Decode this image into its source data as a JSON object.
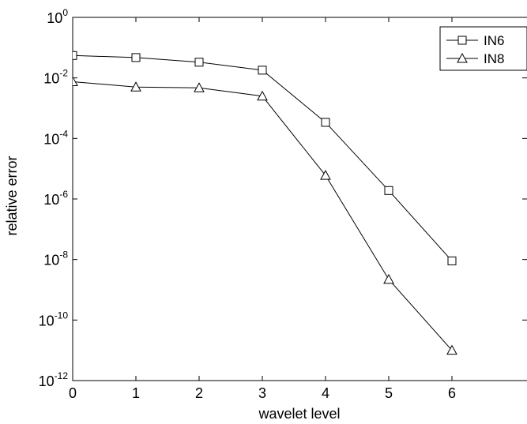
{
  "chart_data": {
    "type": "line",
    "x_scale": "linear",
    "y_scale": "log",
    "xlabel": "wavelet level",
    "ylabel": "relative error",
    "xlim": [
      0,
      6
    ],
    "ylim": [
      1e-12,
      1
    ],
    "x_ticks": [
      0,
      1,
      2,
      3,
      4,
      5,
      6
    ],
    "x_tick_labels": [
      "0",
      "1",
      "2",
      "3",
      "4",
      "5",
      "6"
    ],
    "y_ticks": [
      {
        "value": 1e-12,
        "base": "10",
        "exp": "-12"
      },
      {
        "value": 1e-10,
        "base": "10",
        "exp": "-10"
      },
      {
        "value": 1e-08,
        "base": "10",
        "exp": "-8"
      },
      {
        "value": 1e-06,
        "base": "10",
        "exp": "-6"
      },
      {
        "value": 0.0001,
        "base": "10",
        "exp": "-4"
      },
      {
        "value": 0.01,
        "base": "10",
        "exp": "-2"
      },
      {
        "value": 1,
        "base": "10",
        "exp": "0"
      }
    ],
    "x": [
      0,
      1,
      2,
      3,
      4,
      5,
      6
    ],
    "series": [
      {
        "name": "IN6",
        "marker": "square",
        "values": [
          0.055,
          0.047,
          0.033,
          0.018,
          0.00034,
          1.9e-06,
          9e-09
        ]
      },
      {
        "name": "IN8",
        "marker": "triangle",
        "values": [
          0.0075,
          0.005,
          0.0047,
          0.0025,
          6e-06,
          2.2e-09,
          1e-11
        ]
      }
    ],
    "legend_position": "top-right",
    "grid": false,
    "line_color": "#000000"
  }
}
